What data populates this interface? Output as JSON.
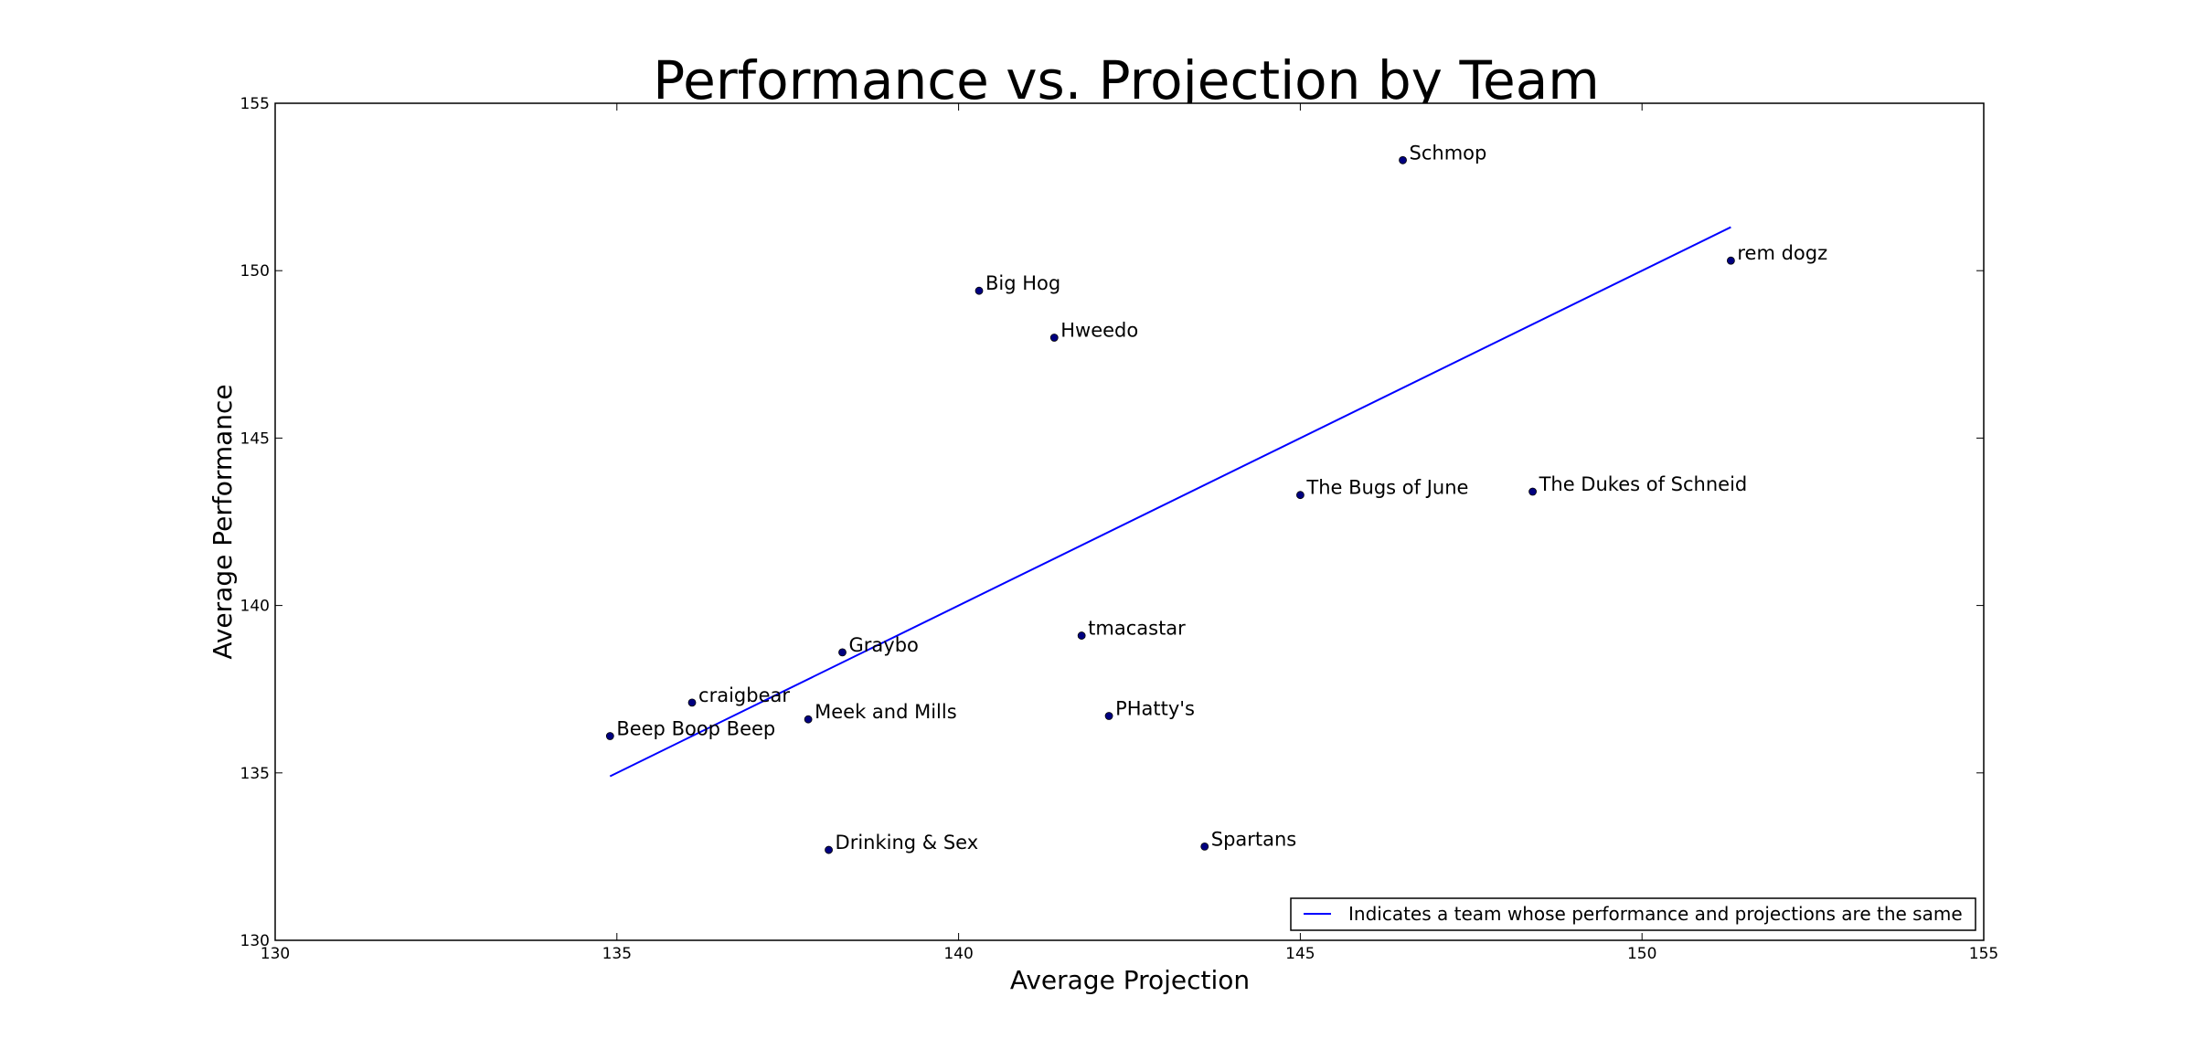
{
  "chart_data": {
    "type": "scatter",
    "title": "Performance vs. Projection by Team",
    "xlabel": "Average Projection",
    "ylabel": "Average Performance",
    "xlim": [
      130,
      155
    ],
    "ylim": [
      130,
      155
    ],
    "xticks": [
      130,
      135,
      140,
      145,
      150,
      155
    ],
    "yticks": [
      130,
      135,
      140,
      145,
      150,
      155
    ],
    "grid": false,
    "points": [
      {
        "label": "Schmop",
        "x": 146.5,
        "y": 153.3
      },
      {
        "label": "rem dogz",
        "x": 151.3,
        "y": 150.3
      },
      {
        "label": "Big Hog",
        "x": 140.3,
        "y": 149.4
      },
      {
        "label": "Hweedo",
        "x": 141.4,
        "y": 148.0
      },
      {
        "label": "The Bugs of June",
        "x": 145.0,
        "y": 143.3
      },
      {
        "label": "The Dukes of Schneid",
        "x": 148.4,
        "y": 143.4
      },
      {
        "label": "tmacastar",
        "x": 141.8,
        "y": 139.1
      },
      {
        "label": "Graybo",
        "x": 138.3,
        "y": 138.6
      },
      {
        "label": "craigbear",
        "x": 136.1,
        "y": 137.1
      },
      {
        "label": "Meek and Mills",
        "x": 137.8,
        "y": 136.6
      },
      {
        "label": "PHatty's",
        "x": 142.2,
        "y": 136.7
      },
      {
        "label": "Beep Boop Beep",
        "x": 134.9,
        "y": 136.1
      },
      {
        "label": "Drinking & Sex",
        "x": 138.1,
        "y": 132.7
      },
      {
        "label": "Spartans",
        "x": 143.6,
        "y": 132.8
      }
    ],
    "reference_line": {
      "x": [
        134.9,
        151.3
      ],
      "y": [
        134.9,
        151.3
      ],
      "name": "Indicates a team whose performance and projections are the same",
      "color": "#0000ff"
    },
    "point_color": "#000080",
    "legend_position": "lower-right"
  }
}
